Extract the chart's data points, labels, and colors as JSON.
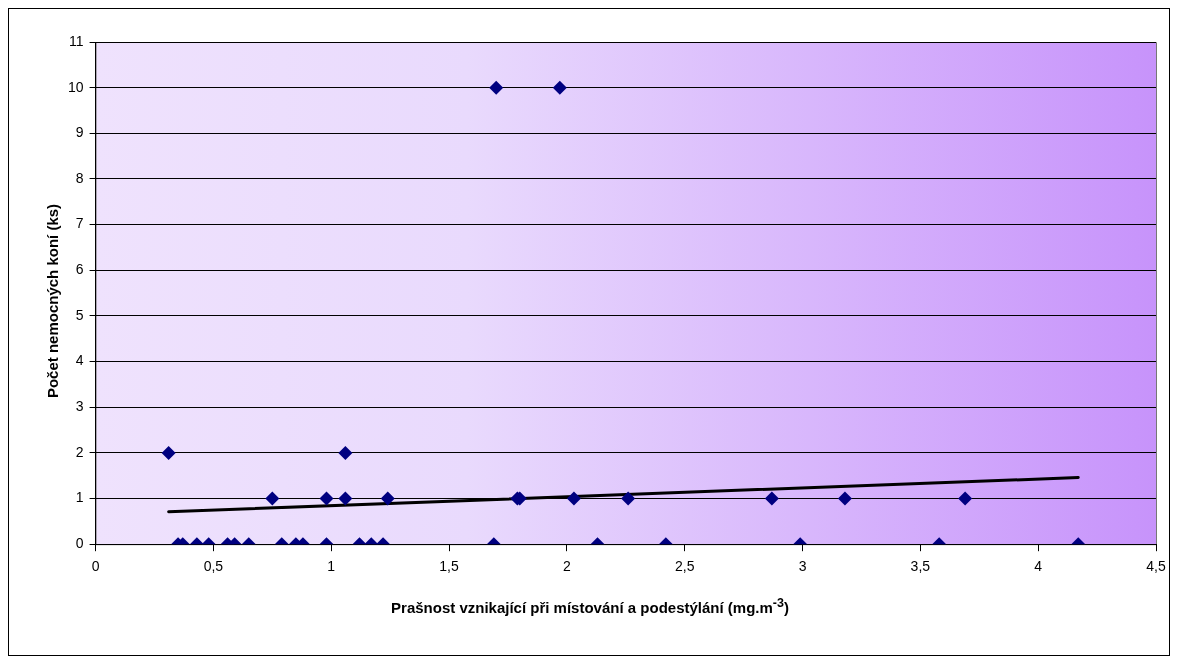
{
  "chart_data": {
    "type": "scatter",
    "xlabel": "Prašnost vznikající při místování a podestýlání (mg.m$^{-3}$)",
    "ylabel": "Počet nemocných koní (ks)",
    "xlim": [
      0,
      4.5
    ],
    "xticks": [
      0,
      {
        "value": 0.5,
        "label": "0,5"
      },
      1,
      {
        "value": 1.5,
        "label": "1,5"
      },
      2,
      {
        "value": 2.5,
        "label": "2,5"
      },
      3,
      {
        "value": 3.5,
        "label": "3,5"
      },
      4,
      {
        "value": 4.5,
        "label": "4,5"
      }
    ],
    "ylim": [
      0,
      11
    ],
    "yticks": [
      0,
      1,
      2,
      3,
      4,
      5,
      6,
      7,
      8,
      9,
      10,
      11
    ],
    "grid": "y",
    "legend": false,
    "series": [
      {
        "color": "#000080",
        "marker": "diamond",
        "x": [
          0.31,
          1.06,
          1.7,
          1.97,
          0.75,
          0.98,
          1.06,
          1.24,
          1.79,
          1.8,
          2.03,
          2.26,
          2.87,
          3.18,
          3.69,
          0.35,
          0.37,
          0.43,
          0.48,
          0.56,
          0.59,
          0.65,
          0.79,
          0.85,
          0.88,
          0.98,
          1.12,
          1.17,
          1.22,
          1.69,
          2.13,
          2.42,
          2.99,
          3.58,
          4.17
        ],
        "values": [
          2,
          2,
          10,
          10,
          1,
          1,
          1,
          1,
          1,
          1,
          1,
          1,
          1,
          1,
          1,
          0,
          0,
          0,
          0,
          0,
          0,
          0,
          0,
          0,
          0,
          0,
          0,
          0,
          0,
          0,
          0,
          0,
          0,
          0,
          0
        ]
      },
      {
        "type": "line",
        "color": "#000000",
        "marker": "none",
        "line_style": "solid",
        "x": [
          0.31,
          4.17
        ],
        "values": [
          0.71,
          1.46
        ]
      }
    ]
  }
}
